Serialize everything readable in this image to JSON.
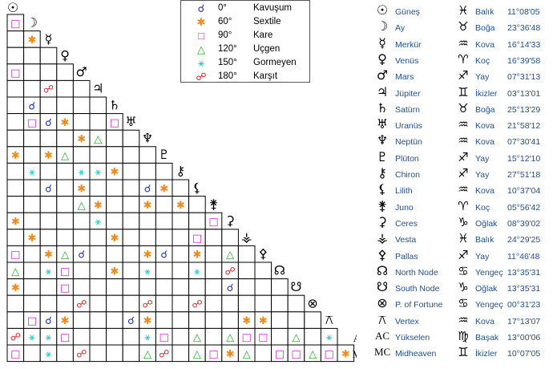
{
  "legend": [
    {
      "symbol": "☌",
      "deg": "0°",
      "name": "Kavuşum",
      "color": "#1f2fbf"
    },
    {
      "symbol": "✱",
      "deg": "60°",
      "name": "Sextile",
      "color": "#f08a1c"
    },
    {
      "symbol": "□",
      "deg": "90°",
      "name": "Kare",
      "color": "#d81fd8"
    },
    {
      "symbol": "△",
      "deg": "120°",
      "name": "Uçgen",
      "color": "#1fb01f"
    },
    {
      "symbol": "⚹",
      "deg": "150°",
      "name": "Gormeyen",
      "color": "#12c7c7"
    },
    {
      "symbol": "☍",
      "deg": "180°",
      "name": "Karşıt",
      "color": "#e01f1f"
    }
  ],
  "planets": [
    {
      "glyph": "☉",
      "name": "Güneş",
      "zglyph": "♓",
      "sign": "Balık",
      "deg": "11°08'05"
    },
    {
      "glyph": "☽",
      "name": "Ay",
      "zglyph": "♉",
      "sign": "Boğa",
      "deg": "23°36'48"
    },
    {
      "glyph": "☿",
      "name": "Merkür",
      "zglyph": "♒",
      "sign": "Kova",
      "deg": "16°14'33"
    },
    {
      "glyph": "♀",
      "name": "Venüs",
      "zglyph": "♈",
      "sign": "Koç",
      "deg": "16°39'58"
    },
    {
      "glyph": "♂",
      "name": "Mars",
      "zglyph": "♐",
      "sign": "Yay",
      "deg": "07°31'13"
    },
    {
      "glyph": "♃",
      "name": "Jüpiter",
      "zglyph": "♊",
      "sign": "İkizler",
      "deg": "03°13'01"
    },
    {
      "glyph": "♄",
      "name": "Satürn",
      "zglyph": "♉",
      "sign": "Boğa",
      "deg": "25°13'29"
    },
    {
      "glyph": "♅",
      "name": "Uranüs",
      "zglyph": "♒",
      "sign": "Kova",
      "deg": "21°58'12"
    },
    {
      "glyph": "♆",
      "name": "Neptün",
      "zglyph": "♒",
      "sign": "Kova",
      "deg": "07°30'41"
    },
    {
      "glyph": "♇",
      "name": "Plüton",
      "zglyph": "♐",
      "sign": "Yay",
      "deg": "15°12'10"
    },
    {
      "glyph": "⚷",
      "name": "Chiron",
      "zglyph": "♐",
      "sign": "Yay",
      "deg": "27°51'18"
    },
    {
      "glyph": "⚸",
      "name": "Lilith",
      "zglyph": "♒",
      "sign": "Kova",
      "deg": "10°37'04"
    },
    {
      "glyph": "⚵",
      "name": "Juno",
      "zglyph": "♈",
      "sign": "Koç",
      "deg": "05°56'42"
    },
    {
      "glyph": "⚳",
      "name": "Ceres",
      "zglyph": "♑",
      "sign": "Oğlak",
      "deg": "08°39'02"
    },
    {
      "glyph": "⚶",
      "name": "Vesta",
      "zglyph": "♓",
      "sign": "Balık",
      "deg": "24°29'25"
    },
    {
      "glyph": "⚴",
      "name": "Pallas",
      "zglyph": "♐",
      "sign": "Yay",
      "deg": "11°46'48"
    },
    {
      "glyph": "☊",
      "name": "North Node",
      "zglyph": "♋",
      "sign": "Yengeç",
      "deg": "13°35'31"
    },
    {
      "glyph": "☋",
      "name": "South Node",
      "zglyph": "♑",
      "sign": "Oğlak",
      "deg": "13°35'31"
    },
    {
      "glyph": "⊗",
      "name": "P. of Fortune",
      "zglyph": "♋",
      "sign": "Yengeç",
      "deg": "00°31'23"
    },
    {
      "glyph": "⚻",
      "name": "Vertex",
      "zglyph": "♒",
      "sign": "Kova",
      "deg": "17°13'07"
    },
    {
      "glyph": "AC",
      "name": "Yükselen",
      "zglyph": "♍",
      "sign": "Başak",
      "deg": "13°00'06"
    },
    {
      "glyph": "MC",
      "name": "Midheaven",
      "zglyph": "♊",
      "sign": "İkizler",
      "deg": "10°07'05"
    }
  ],
  "chart_data": {
    "type": "table",
    "aspect_grid": [
      {
        "row": "Ay",
        "col": "Güneş",
        "aspect": "90"
      },
      {
        "row": "Merkür",
        "col": "Ay",
        "aspect": "60"
      },
      {
        "row": "Mars",
        "col": "Güneş",
        "aspect": "90"
      },
      {
        "row": "Jüpiter",
        "col": "Merkür",
        "aspect": "180"
      },
      {
        "row": "Satürn",
        "col": "Ay",
        "aspect": "0"
      },
      {
        "row": "Uranüs",
        "col": "Ay",
        "aspect": "90"
      },
      {
        "row": "Uranüs",
        "col": "Merkür",
        "aspect": "0"
      },
      {
        "row": "Uranüs",
        "col": "Venüs",
        "aspect": "60"
      },
      {
        "row": "Uranüs",
        "col": "Satürn",
        "aspect": "90"
      },
      {
        "row": "Neptün",
        "col": "Mars",
        "aspect": "60"
      },
      {
        "row": "Neptün",
        "col": "Jüpiter",
        "aspect": "120"
      },
      {
        "row": "Plüton",
        "col": "Güneş",
        "aspect": "60"
      },
      {
        "row": "Plüton",
        "col": "Merkür",
        "aspect": "60"
      },
      {
        "row": "Plüton",
        "col": "Venüs",
        "aspect": "120"
      },
      {
        "row": "Chiron",
        "col": "Ay",
        "aspect": "150"
      },
      {
        "row": "Chiron",
        "col": "Mars",
        "aspect": "150"
      },
      {
        "row": "Chiron",
        "col": "Jüpiter",
        "aspect": "150"
      },
      {
        "row": "Chiron",
        "col": "Satürn",
        "aspect": "60"
      },
      {
        "row": "Lilith",
        "col": "Merkür",
        "aspect": "0"
      },
      {
        "row": "Lilith",
        "col": "Mars",
        "aspect": "60"
      },
      {
        "row": "Lilith",
        "col": "Neptün",
        "aspect": "0"
      },
      {
        "row": "Lilith",
        "col": "Plüton",
        "aspect": "60"
      },
      {
        "row": "Juno",
        "col": "Mars",
        "aspect": "120"
      },
      {
        "row": "Juno",
        "col": "Jüpiter",
        "aspect": "60"
      },
      {
        "row": "Juno",
        "col": "Neptün",
        "aspect": "60"
      },
      {
        "row": "Juno",
        "col": "Chiron",
        "aspect": "60"
      },
      {
        "row": "Ceres",
        "col": "Güneş",
        "aspect": "60"
      },
      {
        "row": "Ceres",
        "col": "Jüpiter",
        "aspect": "150"
      },
      {
        "row": "Ceres",
        "col": "Juno",
        "aspect": "90"
      },
      {
        "row": "Vesta",
        "col": "Ay",
        "aspect": "60"
      },
      {
        "row": "Vesta",
        "col": "Satürn",
        "aspect": "60"
      },
      {
        "row": "Vesta",
        "col": "Lilith",
        "aspect": "90"
      },
      {
        "row": "Pallas",
        "col": "Güneş",
        "aspect": "90"
      },
      {
        "row": "Pallas",
        "col": "Merkür",
        "aspect": "60"
      },
      {
        "row": "Pallas",
        "col": "Venüs",
        "aspect": "120"
      },
      {
        "row": "Pallas",
        "col": "Mars",
        "aspect": "0"
      },
      {
        "row": "Pallas",
        "col": "Neptün",
        "aspect": "60"
      },
      {
        "row": "Pallas",
        "col": "Plüton",
        "aspect": "0"
      },
      {
        "row": "Pallas",
        "col": "Lilith",
        "aspect": "60"
      },
      {
        "row": "Pallas",
        "col": "Ceres",
        "aspect": "120"
      },
      {
        "row": "North Node",
        "col": "Güneş",
        "aspect": "120"
      },
      {
        "row": "North Node",
        "col": "Merkür",
        "aspect": "150"
      },
      {
        "row": "North Node",
        "col": "Venüs",
        "aspect": "90"
      },
      {
        "row": "North Node",
        "col": "Satürn",
        "aspect": "60"
      },
      {
        "row": "North Node",
        "col": "Neptün",
        "aspect": "150"
      },
      {
        "row": "North Node",
        "col": "Lilith",
        "aspect": "150"
      },
      {
        "row": "North Node",
        "col": "Ceres",
        "aspect": "180"
      },
      {
        "row": "South Node",
        "col": "Güneş",
        "aspect": "60"
      },
      {
        "row": "South Node",
        "col": "Venüs",
        "aspect": "90"
      },
      {
        "row": "South Node",
        "col": "Ceres",
        "aspect": "0"
      },
      {
        "row": "P. of Fortune",
        "col": "Mars",
        "aspect": "180"
      },
      {
        "row": "P. of Fortune",
        "col": "Neptün",
        "aspect": "180"
      },
      {
        "row": "P. of Fortune",
        "col": "Lilith",
        "aspect": "180"
      },
      {
        "row": "Vertex",
        "col": "Ay",
        "aspect": "90"
      },
      {
        "row": "Vertex",
        "col": "Merkür",
        "aspect": "0"
      },
      {
        "row": "Vertex",
        "col": "Venüs",
        "aspect": "60"
      },
      {
        "row": "Vertex",
        "col": "Uranüs",
        "aspect": "0"
      },
      {
        "row": "Vertex",
        "col": "Neptün",
        "aspect": "60"
      },
      {
        "row": "Vertex",
        "col": "Vesta",
        "aspect": "60"
      },
      {
        "row": "Vertex",
        "col": "Pallas",
        "aspect": "60"
      },
      {
        "row": "Yükselen",
        "col": "Güneş",
        "aspect": "180"
      },
      {
        "row": "Yükselen",
        "col": "Ay",
        "aspect": "150"
      },
      {
        "row": "Yükselen",
        "col": "Merkür",
        "aspect": "150"
      },
      {
        "row": "Yükselen",
        "col": "Venüs",
        "aspect": "90"
      },
      {
        "row": "Yükselen",
        "col": "Neptün",
        "aspect": "150"
      },
      {
        "row": "Yükselen",
        "col": "Plüton",
        "aspect": "90"
      },
      {
        "row": "Yükselen",
        "col": "Lilith",
        "aspect": "120"
      },
      {
        "row": "Yükselen",
        "col": "Ceres",
        "aspect": "120"
      },
      {
        "row": "Yükselen",
        "col": "Vesta",
        "aspect": "90"
      },
      {
        "row": "Yükselen",
        "col": "Pallas",
        "aspect": "90"
      },
      {
        "row": "Yükselen",
        "col": "South Node",
        "aspect": "120"
      },
      {
        "row": "Yükselen",
        "col": "Vertex",
        "aspect": "150"
      },
      {
        "row": "Midheaven",
        "col": "Güneş",
        "aspect": "90"
      },
      {
        "row": "Midheaven",
        "col": "Merkür",
        "aspect": "150"
      },
      {
        "row": "Midheaven",
        "col": "Mars",
        "aspect": "180"
      },
      {
        "row": "Midheaven",
        "col": "Neptün",
        "aspect": "120"
      },
      {
        "row": "Midheaven",
        "col": "Plüton",
        "aspect": "180"
      },
      {
        "row": "Midheaven",
        "col": "Lilith",
        "aspect": "120"
      },
      {
        "row": "Midheaven",
        "col": "Juno",
        "aspect": "90"
      },
      {
        "row": "Midheaven",
        "col": "Ceres",
        "aspect": "60"
      },
      {
        "row": "Midheaven",
        "col": "Vesta",
        "aspect": "120"
      },
      {
        "row": "Midheaven",
        "col": "North Node",
        "aspect": "90"
      },
      {
        "row": "Midheaven",
        "col": "South Node",
        "aspect": "90"
      },
      {
        "row": "Midheaven",
        "col": "P. of Fortune",
        "aspect": "120"
      },
      {
        "row": "Midheaven",
        "col": "Vertex",
        "aspect": "90"
      },
      {
        "row": "Midheaven",
        "col": "Yükselen",
        "aspect": "60"
      }
    ]
  }
}
